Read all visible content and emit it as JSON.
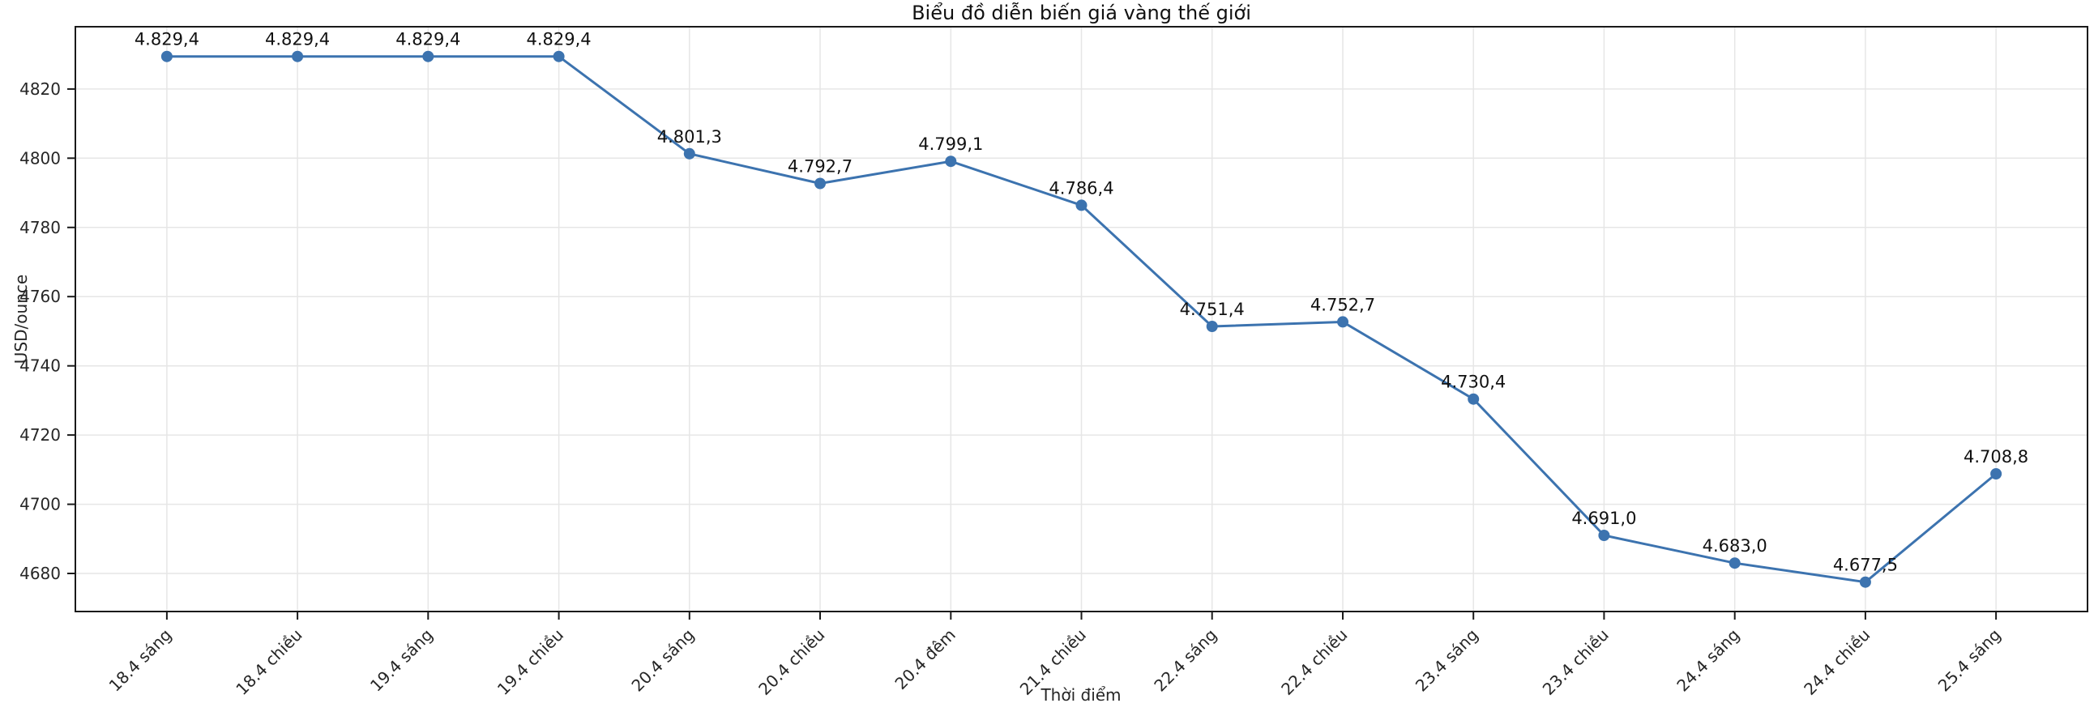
{
  "chart_data": {
    "type": "line",
    "title": "Biểu đồ diễn biến giá vàng thế giới",
    "xlabel": "Thời điểm",
    "ylabel": "USD/ounce",
    "categories": [
      "18.4 sáng",
      "18.4 chiều",
      "19.4 sáng",
      "19.4 chiều",
      "20.4 sáng",
      "20.4 chiều",
      "20.4 đêm",
      "21.4 chiều",
      "22.4 sáng",
      "22.4 chiều",
      "23.4 sáng",
      "23.4 chiều",
      "24.4 sáng",
      "24.4 chiều",
      "25.4 sáng"
    ],
    "values": [
      4829.4,
      4829.4,
      4829.4,
      4829.4,
      4801.3,
      4792.7,
      4799.1,
      4786.4,
      4751.4,
      4752.7,
      4730.4,
      4691.0,
      4683.0,
      4677.5,
      4708.8
    ],
    "point_labels": [
      "4.829,4",
      "4.829,4",
      "4.829,4",
      "4.829,4",
      "4.801,3",
      "4.792,7",
      "4.799,1",
      "4.786,4",
      "4.751,4",
      "4.752,7",
      "4.730,4",
      "4.691,0",
      "4.683,0",
      "4.677,5",
      "4.708,8"
    ],
    "yticks": [
      4680,
      4700,
      4720,
      4740,
      4760,
      4780,
      4800,
      4820
    ],
    "ylim": [
      4669,
      4838
    ],
    "grid": true,
    "legend": "none",
    "marker": "circle",
    "colors": {
      "line": "#3c73af",
      "grid": "#e6e6e6",
      "axis": "#1a1a1a",
      "text": "#262626",
      "background": "#ffffff"
    }
  }
}
